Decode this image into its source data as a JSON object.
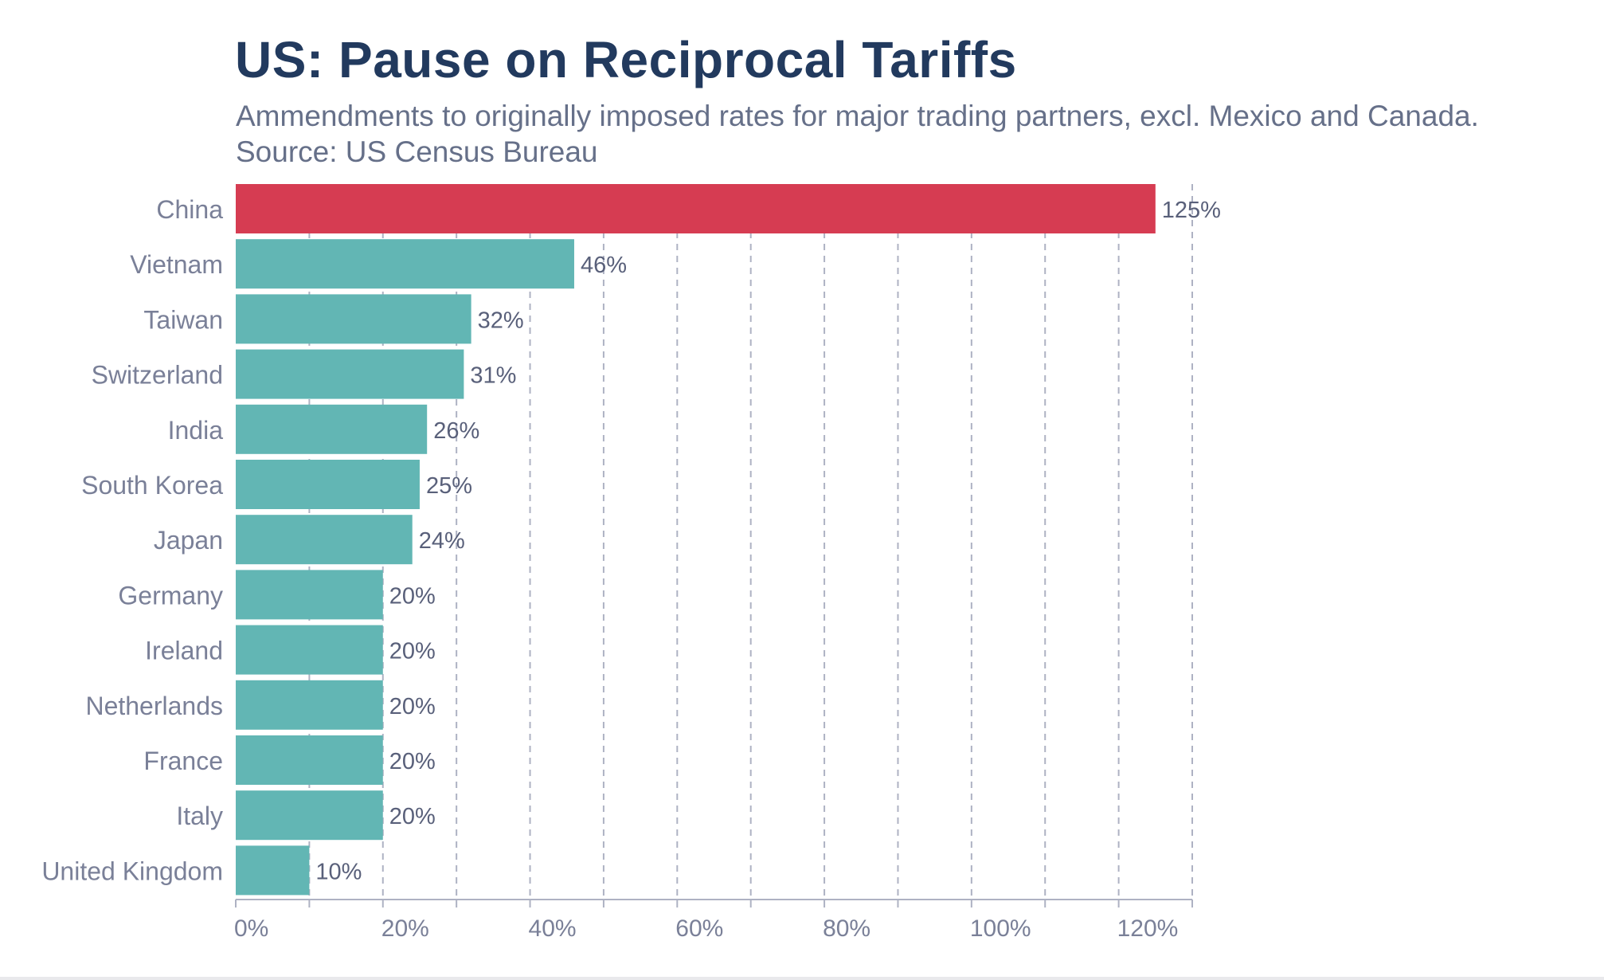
{
  "chart_data": {
    "type": "bar",
    "orientation": "horizontal",
    "title": "US: Pause on Reciprocal Tariffs",
    "subtitle": "Ammendments to originally imposed rates for major trading partners, excl. Mexico and Canada.",
    "source": "Source: US Census Bureau",
    "categories": [
      "China",
      "Vietnam",
      "Taiwan",
      "Switzerland",
      "India",
      "South Korea",
      "Japan",
      "Germany",
      "Ireland",
      "Netherlands",
      "France",
      "Italy",
      "United Kingdom"
    ],
    "values": [
      125,
      46,
      32,
      31,
      26,
      25,
      24,
      20,
      20,
      20,
      20,
      20,
      10
    ],
    "value_labels": [
      "125%",
      "46%",
      "32%",
      "31%",
      "26%",
      "25%",
      "24%",
      "20%",
      "20%",
      "20%",
      "20%",
      "20%",
      "10%"
    ],
    "xlim": [
      0,
      130
    ],
    "xticks": [
      0,
      20,
      40,
      60,
      80,
      100,
      120
    ],
    "xtick_labels": [
      "0%",
      "20%",
      "40%",
      "60%",
      "80%",
      "100%",
      "120%"
    ],
    "grid": "vertical dashed",
    "colors": {
      "highlight": "#d63c52",
      "default": "#62b6b4",
      "grid": "#aeb2c3",
      "label": "#7a8098",
      "value_label": "#59607a"
    },
    "highlight_index": 0
  }
}
